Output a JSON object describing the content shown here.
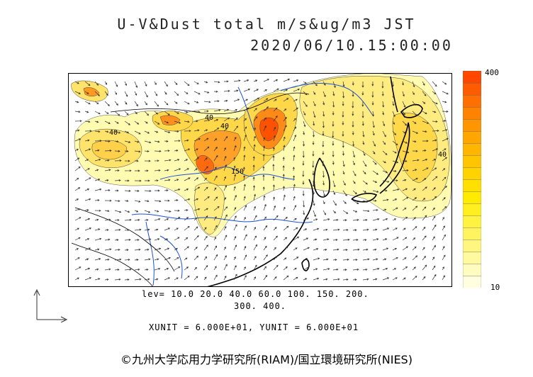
{
  "header": {
    "title_line1": "U-V&Dust total m/s&ug/m3 JST",
    "title_line2": "2020/06/10.15:00:00"
  },
  "colorbar": {
    "max_label": "400",
    "min_label": "10",
    "colors": [
      "#ffffe0",
      "#fffcc0",
      "#fff9a0",
      "#fff680",
      "#fff460",
      "#fff240",
      "#ffef20",
      "#ffeb00",
      "#ffe000",
      "#ffd300",
      "#ffc500",
      "#ffb600",
      "#ffa600",
      "#ff9500",
      "#ff8300",
      "#ff7000",
      "#ff5c00",
      "#ff4700"
    ]
  },
  "contour_labels": [
    "40",
    "40",
    "40",
    "150",
    "40"
  ],
  "legend": {
    "lev_line1": "lev= 10.0 20.0 40.0 60.0 100. 150. 200.",
    "lev_line2": "300. 400.",
    "units": "XUNIT = 6.000E+01, YUNIT = 6.000E+01"
  },
  "credit": "©九州大学応用力学研究所(RIAM)/国立環境研究所(NIES)",
  "colors": {
    "land": "#ffffff",
    "low": "#fffbb0",
    "mid": "#ffd84a",
    "high": "#ff7a18",
    "peak": "#ff4a00",
    "river": "#1e4fd8",
    "coast": "#000000"
  }
}
